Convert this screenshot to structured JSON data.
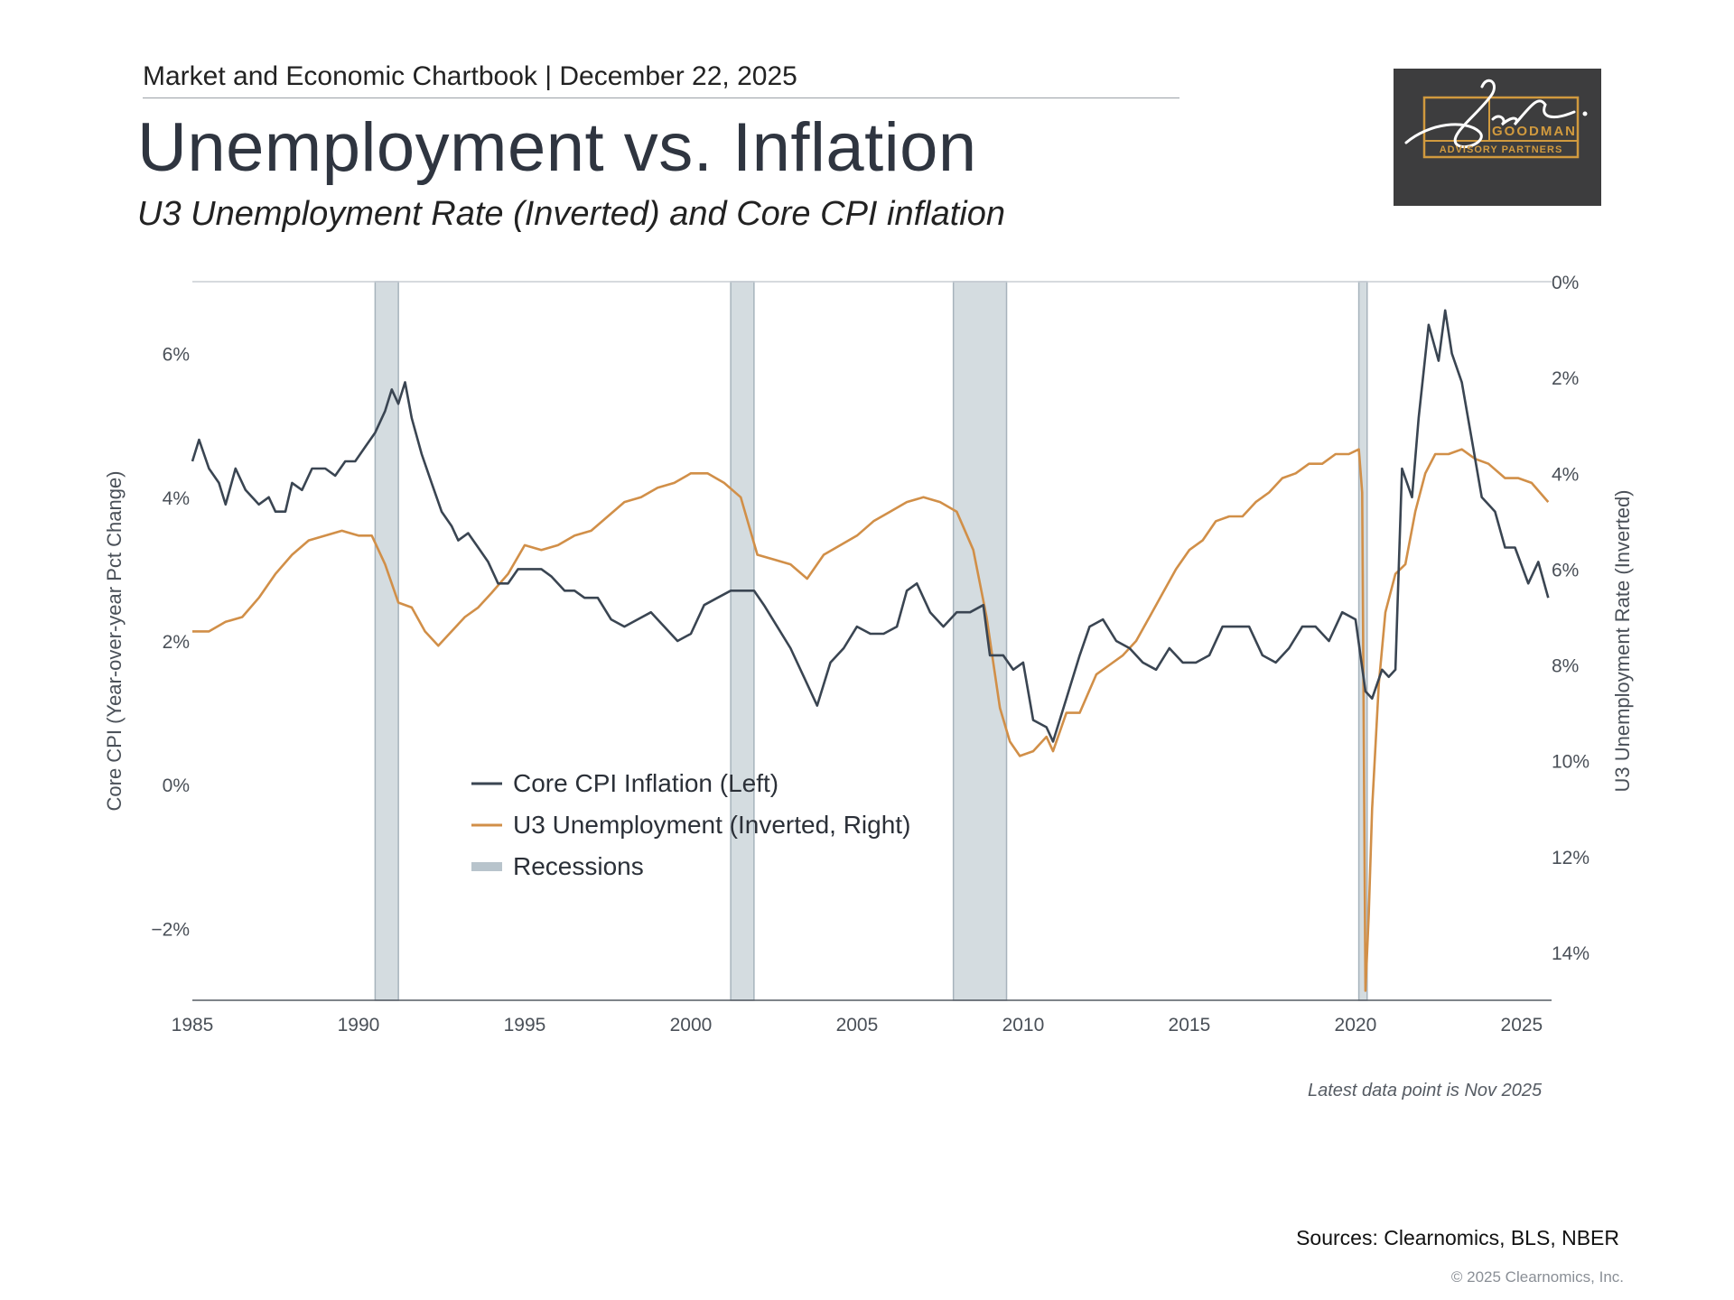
{
  "header": {
    "chartbook_line": "Market and Economic Chartbook | December 22, 2025",
    "title": "Unemployment vs. Inflation",
    "subtitle": "U3 Unemployment Rate (Inverted) and Core CPI inflation"
  },
  "logo": {
    "text_top": "GOODMAN",
    "text_bottom": "ADVISORY PARTNERS",
    "signature": "Jon C.",
    "accent_color": "#d19a3e"
  },
  "footer": {
    "latest_note": "Latest data point is Nov 2025",
    "sources": "Sources: Clearnomics, BLS, NBER",
    "copyright": "© 2025 Clearnomics, Inc."
  },
  "colors": {
    "core_cpi": "#3a4552",
    "unemployment": "#d18f48",
    "recession": "#b8c4cc"
  },
  "chart_data": {
    "type": "line",
    "x_range": [
      1985,
      2025.9
    ],
    "x_ticks": [
      "1985",
      "1990",
      "1995",
      "2000",
      "2005",
      "2010",
      "2015",
      "2020",
      "2025"
    ],
    "left_axis": {
      "label": "Core CPI (Year-over-year Pct Change)",
      "range": [
        -3,
        7
      ],
      "ticks": [
        {
          "value": -2,
          "label": "−2%"
        },
        {
          "value": 0,
          "label": "0%"
        },
        {
          "value": 2,
          "label": "2%"
        },
        {
          "value": 4,
          "label": "4%"
        },
        {
          "value": 6,
          "label": "6%"
        }
      ]
    },
    "right_axis": {
      "label": "U3 Unemployment Rate (Inverted)",
      "inverted": true,
      "range": [
        0,
        15
      ],
      "ticks": [
        {
          "value": 0,
          "label": "0%"
        },
        {
          "value": 2,
          "label": "2%"
        },
        {
          "value": 4,
          "label": "4%"
        },
        {
          "value": 6,
          "label": "6%"
        },
        {
          "value": 8,
          "label": "8%"
        },
        {
          "value": 10,
          "label": "10%"
        },
        {
          "value": 12,
          "label": "12%"
        },
        {
          "value": 14,
          "label": "14%"
        }
      ]
    },
    "legend": {
      "placement": "center-left",
      "items": [
        "Core CPI Inflation (Left)",
        "U3 Unemployment (Inverted, Right)",
        "Recessions"
      ]
    },
    "recessions": [
      [
        1990.5,
        1991.2
      ],
      [
        2001.2,
        2001.9
      ],
      [
        2007.9,
        2009.5
      ],
      [
        2020.1,
        2020.35
      ]
    ],
    "series": [
      {
        "name": "Core CPI Inflation (Left)",
        "axis": "left",
        "points": [
          [
            1985.0,
            4.5
          ],
          [
            1985.2,
            4.8
          ],
          [
            1985.5,
            4.4
          ],
          [
            1985.8,
            4.2
          ],
          [
            1986.0,
            3.9
          ],
          [
            1986.3,
            4.4
          ],
          [
            1986.6,
            4.1
          ],
          [
            1987.0,
            3.9
          ],
          [
            1987.3,
            4.0
          ],
          [
            1987.5,
            3.8
          ],
          [
            1987.8,
            3.8
          ],
          [
            1988.0,
            4.2
          ],
          [
            1988.3,
            4.1
          ],
          [
            1988.6,
            4.4
          ],
          [
            1989.0,
            4.4
          ],
          [
            1989.3,
            4.3
          ],
          [
            1989.6,
            4.5
          ],
          [
            1989.9,
            4.5
          ],
          [
            1990.2,
            4.7
          ],
          [
            1990.5,
            4.9
          ],
          [
            1990.8,
            5.2
          ],
          [
            1991.0,
            5.5
          ],
          [
            1991.2,
            5.3
          ],
          [
            1991.4,
            5.6
          ],
          [
            1991.6,
            5.1
          ],
          [
            1991.9,
            4.6
          ],
          [
            1992.2,
            4.2
          ],
          [
            1992.5,
            3.8
          ],
          [
            1992.8,
            3.6
          ],
          [
            1993.0,
            3.4
          ],
          [
            1993.3,
            3.5
          ],
          [
            1993.6,
            3.3
          ],
          [
            1993.9,
            3.1
          ],
          [
            1994.2,
            2.8
          ],
          [
            1994.5,
            2.8
          ],
          [
            1994.8,
            3.0
          ],
          [
            1995.2,
            3.0
          ],
          [
            1995.5,
            3.0
          ],
          [
            1995.8,
            2.9
          ],
          [
            1996.2,
            2.7
          ],
          [
            1996.5,
            2.7
          ],
          [
            1996.8,
            2.6
          ],
          [
            1997.2,
            2.6
          ],
          [
            1997.6,
            2.3
          ],
          [
            1998.0,
            2.2
          ],
          [
            1998.4,
            2.3
          ],
          [
            1998.8,
            2.4
          ],
          [
            1999.2,
            2.2
          ],
          [
            1999.6,
            2.0
          ],
          [
            2000.0,
            2.1
          ],
          [
            2000.4,
            2.5
          ],
          [
            2000.8,
            2.6
          ],
          [
            2001.2,
            2.7
          ],
          [
            2001.6,
            2.7
          ],
          [
            2001.9,
            2.7
          ],
          [
            2002.2,
            2.5
          ],
          [
            2002.6,
            2.2
          ],
          [
            2003.0,
            1.9
          ],
          [
            2003.4,
            1.5
          ],
          [
            2003.8,
            1.1
          ],
          [
            2004.2,
            1.7
          ],
          [
            2004.6,
            1.9
          ],
          [
            2005.0,
            2.2
          ],
          [
            2005.4,
            2.1
          ],
          [
            2005.8,
            2.1
          ],
          [
            2006.2,
            2.2
          ],
          [
            2006.5,
            2.7
          ],
          [
            2006.8,
            2.8
          ],
          [
            2007.2,
            2.4
          ],
          [
            2007.6,
            2.2
          ],
          [
            2008.0,
            2.4
          ],
          [
            2008.4,
            2.4
          ],
          [
            2008.8,
            2.5
          ],
          [
            2009.0,
            1.8
          ],
          [
            2009.4,
            1.8
          ],
          [
            2009.7,
            1.6
          ],
          [
            2010.0,
            1.7
          ],
          [
            2010.3,
            0.9
          ],
          [
            2010.7,
            0.8
          ],
          [
            2010.9,
            0.6
          ],
          [
            2011.3,
            1.2
          ],
          [
            2011.7,
            1.8
          ],
          [
            2012.0,
            2.2
          ],
          [
            2012.4,
            2.3
          ],
          [
            2012.8,
            2.0
          ],
          [
            2013.2,
            1.9
          ],
          [
            2013.6,
            1.7
          ],
          [
            2014.0,
            1.6
          ],
          [
            2014.4,
            1.9
          ],
          [
            2014.8,
            1.7
          ],
          [
            2015.2,
            1.7
          ],
          [
            2015.6,
            1.8
          ],
          [
            2016.0,
            2.2
          ],
          [
            2016.4,
            2.2
          ],
          [
            2016.8,
            2.2
          ],
          [
            2017.2,
            1.8
          ],
          [
            2017.6,
            1.7
          ],
          [
            2018.0,
            1.9
          ],
          [
            2018.4,
            2.2
          ],
          [
            2018.8,
            2.2
          ],
          [
            2019.2,
            2.0
          ],
          [
            2019.6,
            2.4
          ],
          [
            2020.0,
            2.3
          ],
          [
            2020.3,
            1.3
          ],
          [
            2020.5,
            1.2
          ],
          [
            2020.8,
            1.6
          ],
          [
            2021.0,
            1.5
          ],
          [
            2021.2,
            1.6
          ],
          [
            2021.4,
            4.4
          ],
          [
            2021.7,
            4.0
          ],
          [
            2021.9,
            5.1
          ],
          [
            2022.2,
            6.4
          ],
          [
            2022.5,
            5.9
          ],
          [
            2022.7,
            6.6
          ],
          [
            2022.9,
            6.0
          ],
          [
            2023.2,
            5.6
          ],
          [
            2023.5,
            4.8
          ],
          [
            2023.8,
            4.0
          ],
          [
            2024.2,
            3.8
          ],
          [
            2024.5,
            3.3
          ],
          [
            2024.8,
            3.3
          ],
          [
            2025.2,
            2.8
          ],
          [
            2025.5,
            3.1
          ],
          [
            2025.8,
            2.6
          ]
        ]
      },
      {
        "name": "U3 Unemployment (Inverted, Right)",
        "axis": "right",
        "points": [
          [
            1985.0,
            7.3
          ],
          [
            1985.5,
            7.3
          ],
          [
            1986.0,
            7.1
          ],
          [
            1986.5,
            7.0
          ],
          [
            1987.0,
            6.6
          ],
          [
            1987.5,
            6.1
          ],
          [
            1988.0,
            5.7
          ],
          [
            1988.5,
            5.4
          ],
          [
            1989.0,
            5.3
          ],
          [
            1989.5,
            5.2
          ],
          [
            1990.0,
            5.3
          ],
          [
            1990.4,
            5.3
          ],
          [
            1990.8,
            5.9
          ],
          [
            1991.2,
            6.7
          ],
          [
            1991.6,
            6.8
          ],
          [
            1992.0,
            7.3
          ],
          [
            1992.4,
            7.6
          ],
          [
            1992.8,
            7.3
          ],
          [
            1993.2,
            7.0
          ],
          [
            1993.6,
            6.8
          ],
          [
            1994.0,
            6.5
          ],
          [
            1994.5,
            6.1
          ],
          [
            1995.0,
            5.5
          ],
          [
            1995.5,
            5.6
          ],
          [
            1996.0,
            5.5
          ],
          [
            1996.5,
            5.3
          ],
          [
            1997.0,
            5.2
          ],
          [
            1997.5,
            4.9
          ],
          [
            1998.0,
            4.6
          ],
          [
            1998.5,
            4.5
          ],
          [
            1999.0,
            4.3
          ],
          [
            1999.5,
            4.2
          ],
          [
            2000.0,
            4.0
          ],
          [
            2000.5,
            4.0
          ],
          [
            2001.0,
            4.2
          ],
          [
            2001.5,
            4.5
          ],
          [
            2002.0,
            5.7
          ],
          [
            2002.5,
            5.8
          ],
          [
            2003.0,
            5.9
          ],
          [
            2003.5,
            6.2
          ],
          [
            2004.0,
            5.7
          ],
          [
            2004.5,
            5.5
          ],
          [
            2005.0,
            5.3
          ],
          [
            2005.5,
            5.0
          ],
          [
            2006.0,
            4.8
          ],
          [
            2006.5,
            4.6
          ],
          [
            2007.0,
            4.5
          ],
          [
            2007.5,
            4.6
          ],
          [
            2008.0,
            4.8
          ],
          [
            2008.5,
            5.6
          ],
          [
            2008.9,
            7.0
          ],
          [
            2009.3,
            8.9
          ],
          [
            2009.6,
            9.6
          ],
          [
            2009.9,
            9.9
          ],
          [
            2010.3,
            9.8
          ],
          [
            2010.7,
            9.5
          ],
          [
            2010.9,
            9.8
          ],
          [
            2011.3,
            9.0
          ],
          [
            2011.7,
            9.0
          ],
          [
            2012.2,
            8.2
          ],
          [
            2012.6,
            8.0
          ],
          [
            2013.0,
            7.8
          ],
          [
            2013.4,
            7.5
          ],
          [
            2013.8,
            7.0
          ],
          [
            2014.2,
            6.5
          ],
          [
            2014.6,
            6.0
          ],
          [
            2015.0,
            5.6
          ],
          [
            2015.4,
            5.4
          ],
          [
            2015.8,
            5.0
          ],
          [
            2016.2,
            4.9
          ],
          [
            2016.6,
            4.9
          ],
          [
            2017.0,
            4.6
          ],
          [
            2017.4,
            4.4
          ],
          [
            2017.8,
            4.1
          ],
          [
            2018.2,
            4.0
          ],
          [
            2018.6,
            3.8
          ],
          [
            2019.0,
            3.8
          ],
          [
            2019.4,
            3.6
          ],
          [
            2019.8,
            3.6
          ],
          [
            2020.1,
            3.5
          ],
          [
            2020.2,
            4.4
          ],
          [
            2020.3,
            14.8
          ],
          [
            2020.4,
            13.2
          ],
          [
            2020.5,
            11.0
          ],
          [
            2020.7,
            8.4
          ],
          [
            2020.9,
            6.9
          ],
          [
            2021.2,
            6.1
          ],
          [
            2021.5,
            5.9
          ],
          [
            2021.8,
            4.8
          ],
          [
            2022.1,
            4.0
          ],
          [
            2022.4,
            3.6
          ],
          [
            2022.8,
            3.6
          ],
          [
            2023.2,
            3.5
          ],
          [
            2023.6,
            3.7
          ],
          [
            2024.0,
            3.8
          ],
          [
            2024.5,
            4.1
          ],
          [
            2024.9,
            4.1
          ],
          [
            2025.3,
            4.2
          ],
          [
            2025.8,
            4.6
          ]
        ]
      }
    ]
  }
}
